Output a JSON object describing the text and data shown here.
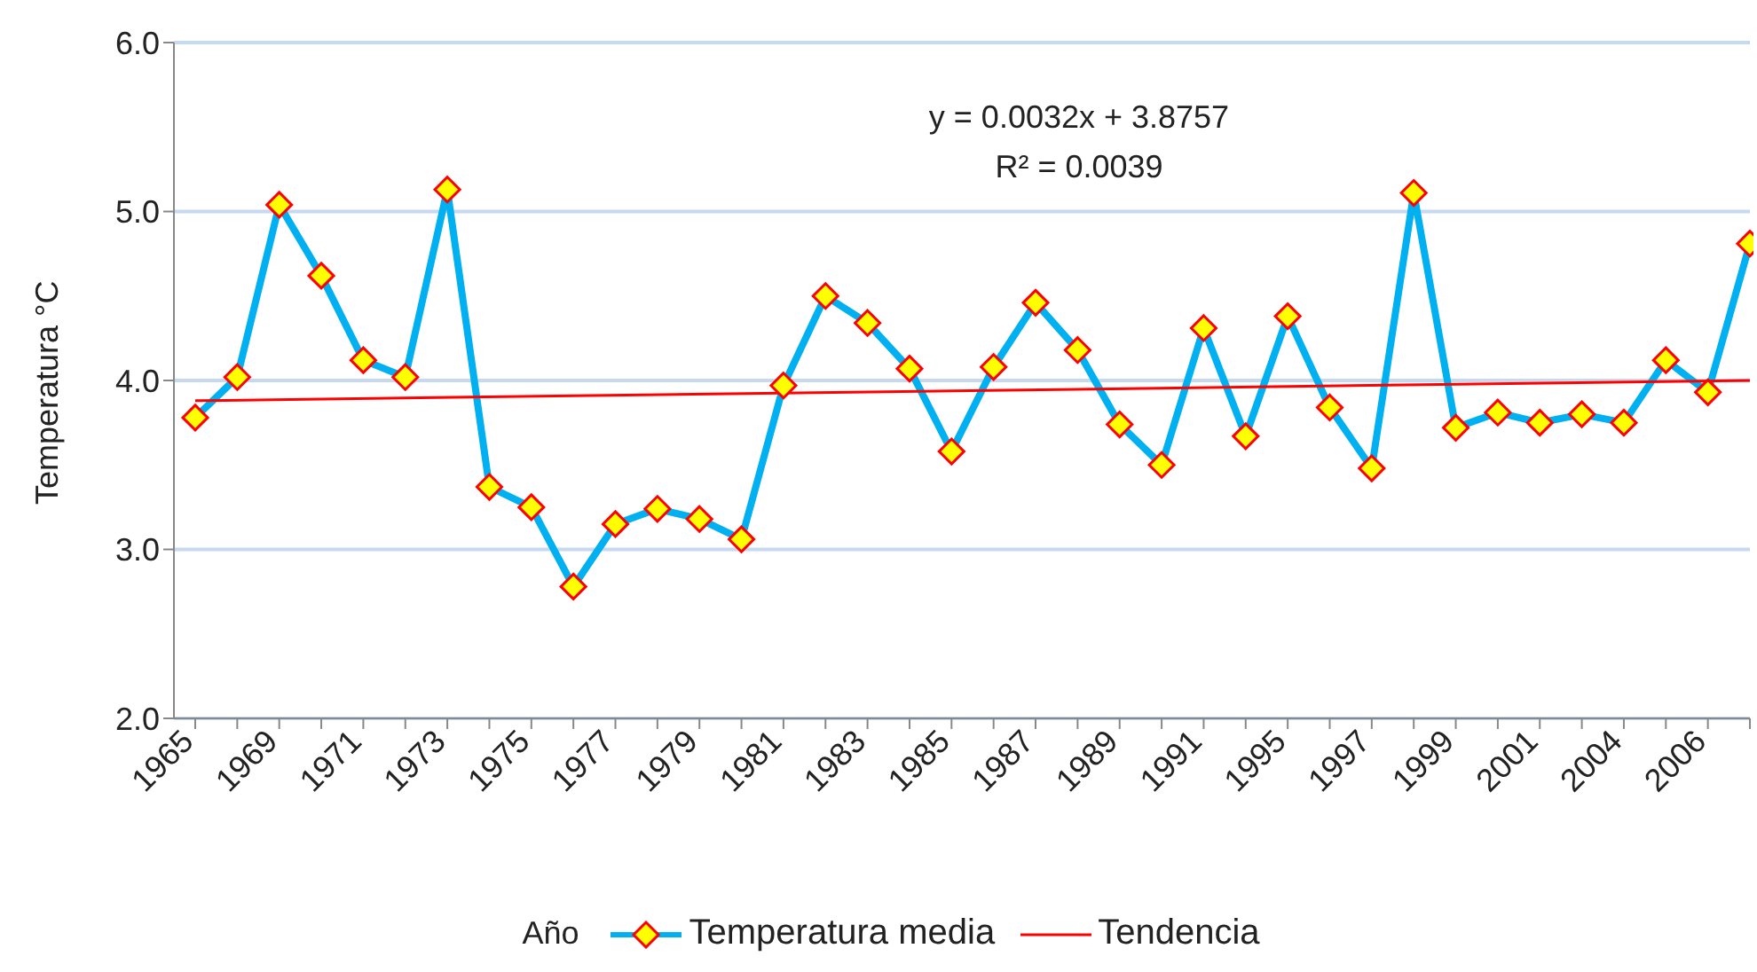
{
  "chart_data": {
    "type": "line",
    "xlabel": "Año",
    "ylabel": "Temperatura °C",
    "annotations": [
      "y = 0.0032x + 3.8757",
      "R² = 0.0039"
    ],
    "categories": [
      "1965",
      null,
      "1969",
      null,
      "1971",
      null,
      "1973",
      null,
      "1975",
      null,
      "1977",
      null,
      "1979",
      null,
      "1981",
      null,
      "1983",
      null,
      "1985",
      null,
      "1987",
      null,
      "1989",
      null,
      "1991",
      null,
      "1995",
      null,
      "1997",
      null,
      "1999",
      null,
      "2001",
      null,
      "2004",
      null,
      "2006",
      null
    ],
    "series": [
      {
        "name": "Temperatura media",
        "color": "#00b0f0",
        "marker": "diamond",
        "values": [
          3.78,
          4.02,
          5.04,
          4.62,
          4.12,
          4.02,
          5.13,
          3.37,
          3.25,
          2.78,
          3.15,
          3.24,
          3.18,
          3.06,
          3.97,
          4.5,
          4.34,
          4.07,
          3.58,
          4.08,
          4.46,
          4.18,
          3.74,
          3.5,
          4.31,
          3.67,
          4.38,
          3.84,
          3.48,
          5.11,
          3.72,
          3.81,
          3.75,
          3.8,
          3.75,
          4.12,
          3.93,
          4.81
        ]
      },
      {
        "name": "Tendencia",
        "color": "#ff0000",
        "marker": "none",
        "values": [
          3.88,
          null,
          null,
          null,
          null,
          null,
          null,
          null,
          null,
          null,
          null,
          null,
          null,
          null,
          null,
          null,
          null,
          null,
          null,
          null,
          null,
          null,
          null,
          null,
          null,
          null,
          null,
          null,
          null,
          null,
          null,
          null,
          null,
          null,
          null,
          null,
          null,
          4.0
        ]
      }
    ],
    "ylim": [
      2,
      6
    ],
    "yticks": [
      {
        "value": 2,
        "label": "2.0"
      },
      {
        "value": 3,
        "label": "3.0"
      },
      {
        "value": 4,
        "label": "4.0"
      },
      {
        "value": 5,
        "label": "5.0"
      },
      {
        "value": 6,
        "label": "6.0"
      }
    ],
    "grid": "y",
    "legend": "bottom"
  }
}
